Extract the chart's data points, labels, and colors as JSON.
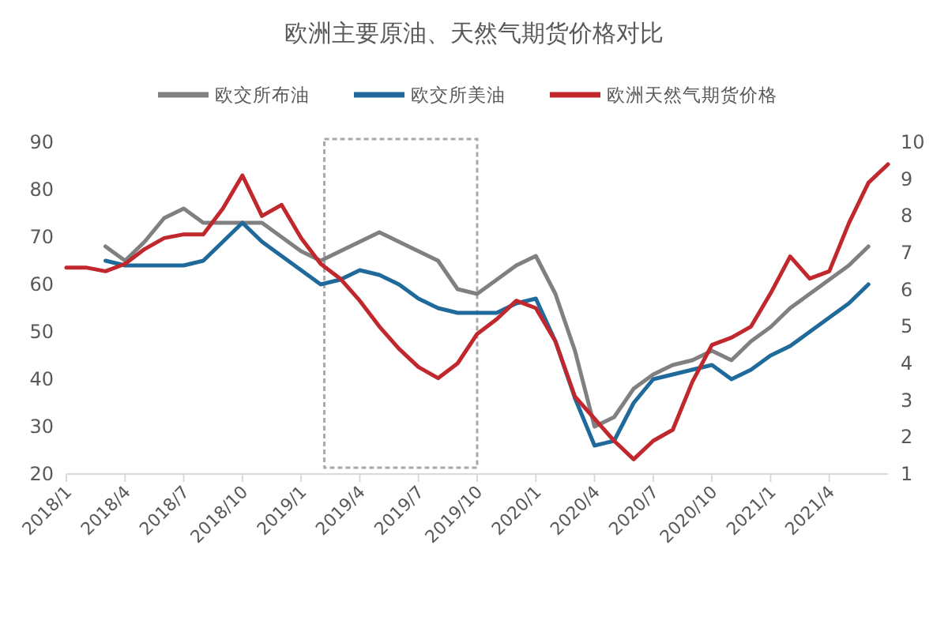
{
  "chart_data": {
    "type": "line",
    "title": "欧洲主要原油、天然气期货价格对比",
    "x": [
      "2018-01",
      "2018-02",
      "2018-03",
      "2018-04",
      "2018-05",
      "2018-06",
      "2018-07",
      "2018-08",
      "2018-09",
      "2018-10",
      "2018-11",
      "2018-12",
      "2019-01",
      "2019-02",
      "2019-03",
      "2019-04",
      "2019-05",
      "2019-06",
      "2019-07",
      "2019-08",
      "2019-09",
      "2019-10",
      "2019-11",
      "2019-12",
      "2020-01",
      "2020-02",
      "2020-03",
      "2020-04",
      "2020-05",
      "2020-06",
      "2020-07",
      "2020-08",
      "2020-09",
      "2020-10",
      "2020-11",
      "2020-12",
      "2021-01",
      "2021-02",
      "2021-03",
      "2021-04",
      "2021-05",
      "2021-06",
      "2021-07"
    ],
    "series": [
      {
        "name": "欧交所布油",
        "color": "#808080",
        "values": [
          null,
          null,
          68,
          65,
          69,
          74,
          76,
          73,
          73,
          73,
          73,
          70,
          67,
          65,
          67,
          69,
          71,
          69,
          67,
          65,
          59,
          58,
          61,
          64,
          66,
          58,
          46,
          30,
          32,
          38,
          41,
          43,
          44,
          46,
          44,
          48,
          51,
          55,
          58,
          61,
          64,
          68,
          null
        ]
      },
      {
        "name": "欧交所美油",
        "color": "#1f6a9a",
        "values": [
          null,
          null,
          65,
          64,
          64,
          64,
          64,
          65,
          69,
          73,
          69,
          66,
          63,
          60,
          61,
          63,
          62,
          60,
          57,
          55,
          54,
          54,
          54,
          56,
          57,
          48,
          36,
          26,
          27,
          35,
          40,
          41,
          42,
          43,
          40,
          42,
          45,
          47,
          50,
          53,
          56,
          60,
          null
        ]
      },
      {
        "name": "欧洲天然气期货价格",
        "color": "#c0282d",
        "axis": "y2",
        "values": [
          6.6,
          6.6,
          6.5,
          6.7,
          7.1,
          7.4,
          7.5,
          7.5,
          8.2,
          9.1,
          8.0,
          8.3,
          7.4,
          6.7,
          6.3,
          5.7,
          5.0,
          4.4,
          3.9,
          3.6,
          4.0,
          4.8,
          5.2,
          5.7,
          5.5,
          4.6,
          3.1,
          2.5,
          1.9,
          1.4,
          1.9,
          2.2,
          3.5,
          4.5,
          4.7,
          5.0,
          5.9,
          6.9,
          6.3,
          6.5,
          7.8,
          8.9,
          9.4
        ]
      }
    ],
    "xlim": [
      "2018-01",
      "2021-07"
    ],
    "xticks": [
      {
        "value": "2018-01",
        "label": "2018/1"
      },
      {
        "value": "2018-04",
        "label": "2018/4"
      },
      {
        "value": "2018-07",
        "label": "2018/7"
      },
      {
        "value": "2018-10",
        "label": "2018/10"
      },
      {
        "value": "2019-01",
        "label": "2019/1"
      },
      {
        "value": "2019-04",
        "label": "2019/4"
      },
      {
        "value": "2019-07",
        "label": "2019/7"
      },
      {
        "value": "2019-10",
        "label": "2019/10"
      },
      {
        "value": "2020-01",
        "label": "2020/1"
      },
      {
        "value": "2020-04",
        "label": "2020/4"
      },
      {
        "value": "2020-07",
        "label": "2020/7"
      },
      {
        "value": "2020-10",
        "label": "2020/10"
      },
      {
        "value": "2021-01",
        "label": "2021/1"
      },
      {
        "value": "2021-04",
        "label": "2021/4"
      }
    ],
    "ylim": [
      20,
      90
    ],
    "yticks": [
      20,
      30,
      40,
      50,
      60,
      70,
      80,
      90
    ],
    "y2lim": [
      1,
      10
    ],
    "y2ticks": [
      1,
      2,
      3,
      4,
      5,
      6,
      7,
      8,
      9,
      10
    ],
    "legend": "top",
    "grid": false,
    "marker": "none",
    "line_style": "solid"
  }
}
